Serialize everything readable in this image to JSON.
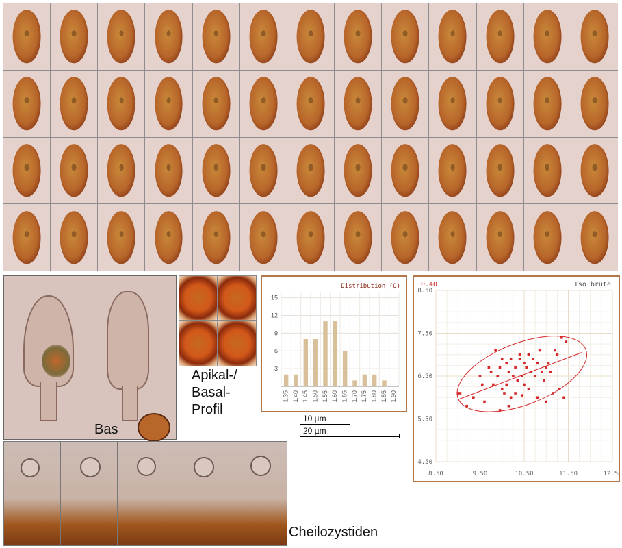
{
  "spore_grid": {
    "rows": 4,
    "cols": 13
  },
  "basidia_panel": {
    "label": "Bas"
  },
  "profile_panel": {
    "label_line1": "Apikal-/",
    "label_line2": "Basal-",
    "label_line3": "Profil"
  },
  "scale_bars": {
    "small": "10 µm",
    "large": "20 µm"
  },
  "cheilo_panel": {
    "label": "Cheilozystiden"
  },
  "colors": {
    "chart_frame": "#b3774a",
    "histogram_bar": "#d7c09a",
    "scatter_red": "#d4282a"
  },
  "chart_data": [
    {
      "type": "bar",
      "title": "Distribution (Q)",
      "categories": [
        "1.35",
        "1.40",
        "1.45",
        "1.50",
        "1.55",
        "1.60",
        "1.65",
        "1.70",
        "1.75",
        "1.80",
        "1.85",
        "1.90"
      ],
      "values": [
        2,
        2,
        8,
        8,
        11,
        11,
        6,
        1,
        2,
        2,
        1,
        0
      ],
      "y_ticks": [
        "15",
        "12",
        "9",
        "6",
        "3"
      ],
      "ylim": [
        0,
        16
      ],
      "grid": true
    },
    {
      "type": "scatter",
      "title": "Iso brute",
      "corner_label": "0.40",
      "x_ticks": [
        "8.50",
        "9.50",
        "10.50",
        "11.50",
        "12.50"
      ],
      "y_ticks": [
        "8.50",
        "7.50",
        "6.50",
        "5.50",
        "4.50"
      ],
      "xlim": [
        8.5,
        12.5
      ],
      "ylim": [
        4.5,
        8.5
      ],
      "grid": true,
      "points": [
        [
          9.0,
          6.1
        ],
        [
          9.05,
          6.1
        ],
        [
          9.2,
          5.8
        ],
        [
          9.35,
          6.0
        ],
        [
          9.5,
          6.5
        ],
        [
          9.55,
          6.3
        ],
        [
          9.6,
          5.9
        ],
        [
          9.7,
          6.7
        ],
        [
          9.75,
          6.6
        ],
        [
          9.8,
          6.3
        ],
        [
          9.85,
          7.1
        ],
        [
          9.9,
          6.5
        ],
        [
          9.95,
          6.7
        ],
        [
          10.0,
          6.9
        ],
        [
          10.0,
          6.2
        ],
        [
          10.05,
          6.1
        ],
        [
          10.1,
          6.3
        ],
        [
          10.1,
          6.8
        ],
        [
          10.15,
          6.6
        ],
        [
          10.2,
          6.9
        ],
        [
          10.2,
          6.0
        ],
        [
          10.25,
          6.5
        ],
        [
          10.3,
          6.1
        ],
        [
          10.3,
          6.7
        ],
        [
          10.35,
          6.4
        ],
        [
          10.4,
          6.9
        ],
        [
          10.4,
          7.0
        ],
        [
          10.45,
          6.5
        ],
        [
          10.5,
          6.3
        ],
        [
          10.5,
          6.8
        ],
        [
          10.55,
          6.7
        ],
        [
          10.6,
          6.2
        ],
        [
          10.6,
          7.0
        ],
        [
          10.65,
          6.6
        ],
        [
          10.7,
          6.9
        ],
        [
          10.75,
          6.5
        ],
        [
          10.8,
          6.8
        ],
        [
          10.8,
          6.0
        ],
        [
          10.85,
          7.1
        ],
        [
          10.9,
          6.6
        ],
        [
          10.95,
          6.4
        ],
        [
          11.0,
          6.7
        ],
        [
          11.0,
          5.9
        ],
        [
          11.05,
          6.8
        ],
        [
          11.1,
          6.6
        ],
        [
          11.15,
          6.1
        ],
        [
          11.2,
          7.1
        ],
        [
          11.25,
          7.0
        ],
        [
          11.3,
          6.2
        ],
        [
          11.35,
          7.4
        ],
        [
          11.4,
          6.0
        ],
        [
          11.45,
          7.3
        ],
        [
          10.15,
          5.8
        ],
        [
          9.95,
          5.7
        ],
        [
          10.45,
          6.05
        ]
      ],
      "regression": {
        "x": [
          9.0,
          11.8
        ],
        "y": [
          5.95,
          7.05
        ]
      },
      "ellipse": {
        "cx": 10.45,
        "cy": 6.55,
        "rx": 1.55,
        "ry": 0.72,
        "angle_deg": -21
      }
    }
  ]
}
